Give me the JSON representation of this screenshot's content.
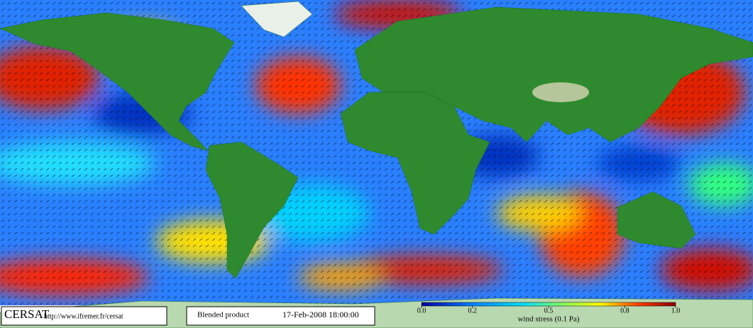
{
  "footer": {
    "brand": "CERSAT",
    "url": "http://www.ifremer.fr/cersat",
    "product": "Blended product",
    "timestamp": "17-Feb-2008 18:00:00"
  },
  "colorbar": {
    "label": "wind stress (0.1 Pa)",
    "ticks": [
      {
        "value": 0,
        "label": "0.0"
      },
      {
        "value": 0.2,
        "label": "0.2"
      },
      {
        "value": 0.5,
        "label": "0.5"
      },
      {
        "value": 0.8,
        "label": "0.8"
      },
      {
        "value": 1,
        "label": "1.0"
      }
    ]
  }
}
